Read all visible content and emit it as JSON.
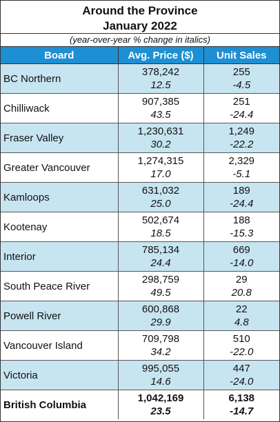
{
  "header": {
    "title_lines": [
      "Around the Province",
      "January 2022"
    ],
    "subtitle": "(year-over-year % change in italics)"
  },
  "table": {
    "columns": [
      "Board",
      "Avg. Price ($)",
      "Unit Sales"
    ],
    "rows": [
      {
        "board": "BC Northern",
        "price": "378,242",
        "price_change": "12.5",
        "units": "255",
        "units_change": "-4.5"
      },
      {
        "board": "Chilliwack",
        "price": "907,385",
        "price_change": "43.5",
        "units": "251",
        "units_change": "-24.4"
      },
      {
        "board": "Fraser Valley",
        "price": "1,230,631",
        "price_change": "30.2",
        "units": "1,249",
        "units_change": "-22.2"
      },
      {
        "board": "Greater Vancouver",
        "price": "1,274,315",
        "price_change": "17.0",
        "units": "2,329",
        "units_change": "-5.1"
      },
      {
        "board": "Kamloops",
        "price": "631,032",
        "price_change": "25.0",
        "units": "189",
        "units_change": "-24.4"
      },
      {
        "board": "Kootenay",
        "price": "502,674",
        "price_change": "18.5",
        "units": "188",
        "units_change": "-15.3"
      },
      {
        "board": "Interior",
        "price": "785,134",
        "price_change": "24.4",
        "units": "669",
        "units_change": "-14.0"
      },
      {
        "board": "South Peace River",
        "price": "298,759",
        "price_change": "49.5",
        "units": "29",
        "units_change": "20.8"
      },
      {
        "board": "Powell River",
        "price": "600,868",
        "price_change": "29.9",
        "units": "22",
        "units_change": "4.8"
      },
      {
        "board": "Vancouver Island",
        "price": "709,798",
        "price_change": "34.2",
        "units": "510",
        "units_change": "-22.0"
      },
      {
        "board": "Victoria",
        "price": "995,055",
        "price_change": "14.6",
        "units": "447",
        "units_change": "-24.0"
      }
    ],
    "total": {
      "board": "British Columbia",
      "price": "1,042,169",
      "price_change": "23.5",
      "units": "6,138",
      "units_change": "-14.7"
    }
  }
}
